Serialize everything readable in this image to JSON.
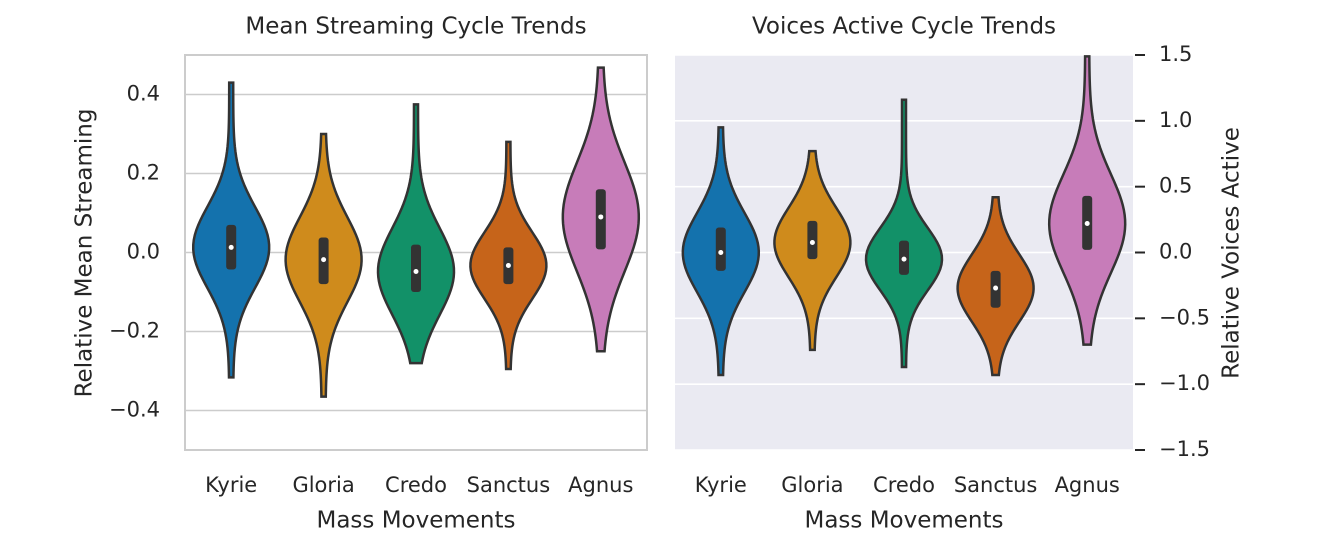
{
  "chart_data": [
    {
      "type": "violin",
      "title": "Mean Streaming Cycle Trends",
      "x_label": "Mass Movements",
      "y_label": "Relative Mean Streaming",
      "categories": [
        "Kyrie",
        "Gloria",
        "Credo",
        "Sanctus",
        "Agnus"
      ],
      "colors": [
        "#1472ad",
        "#cf8b1c",
        "#129168",
        "#c6641a",
        "#c77cb9"
      ],
      "min": [
        -0.316,
        -0.365,
        -0.28,
        -0.295,
        -0.25
      ],
      "q1": [
        -0.043,
        -0.08,
        -0.1,
        -0.08,
        0.008
      ],
      "median": [
        0.013,
        -0.018,
        -0.048,
        -0.033,
        0.09
      ],
      "q3": [
        0.07,
        0.038,
        0.02,
        0.013,
        0.16
      ],
      "max": [
        0.43,
        0.3,
        0.375,
        0.28,
        0.468
      ],
      "ylim": [
        -0.5,
        0.5
      ],
      "yticks": [
        {
          "value": -0.4,
          "label": "−0.4"
        },
        {
          "value": -0.2,
          "label": "−0.2"
        },
        {
          "value": 0,
          "label": "0.0"
        },
        0.2,
        0.4
      ],
      "grid": true,
      "y_axis_side": "left",
      "background": "#ffffff"
    },
    {
      "type": "violin",
      "title": "Voices Active Cycle Trends",
      "x_label": "Mass Movements",
      "y_label": "Relative Voices Active",
      "categories": [
        "Kyrie",
        "Gloria",
        "Credo",
        "Sanctus",
        "Agnus"
      ],
      "colors": [
        "#1472ad",
        "#cf8b1c",
        "#129168",
        "#c6641a",
        "#c77cb9"
      ],
      "min": [
        -0.93,
        -0.74,
        -0.87,
        -0.93,
        -0.7
      ],
      "q1": [
        -0.14,
        -0.05,
        -0.17,
        -0.42,
        0.02
      ],
      "median": [
        0,
        0.076,
        -0.05,
        -0.27,
        0.22
      ],
      "q3": [
        0.19,
        0.24,
        0.09,
        -0.14,
        0.43
      ],
      "max": [
        0.95,
        0.77,
        1.16,
        0.42,
        1.49
      ],
      "ylim": [
        -1.5,
        1.5
      ],
      "yticks": [
        {
          "value": -1.5,
          "label": "−1.5"
        },
        {
          "value": -1,
          "label": "−1.0"
        },
        {
          "value": -0.5,
          "label": "−0.5"
        },
        {
          "value": 0,
          "label": "0.0"
        },
        0.5,
        {
          "value": 1,
          "label": "1.0"
        },
        1.5
      ],
      "grid": true,
      "y_axis_side": "right",
      "background": "#eaeaf2"
    }
  ]
}
